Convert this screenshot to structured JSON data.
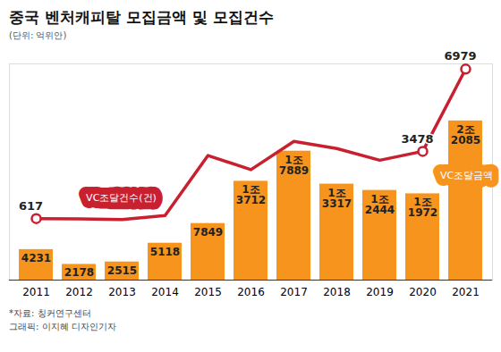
{
  "chart_data": {
    "type": "bar",
    "title": "중국 벤처캐피탈 모집금액 및 모집건수",
    "subtitle": "(단위: 억위안)",
    "categories": [
      "2011",
      "2012",
      "2013",
      "2014",
      "2015",
      "2016",
      "2017",
      "2018",
      "2019",
      "2020",
      "2021"
    ],
    "series": [
      {
        "name": "VC조달금액",
        "type": "bar",
        "color": "#f7941d",
        "values": [
          4231,
          2178,
          2515,
          5118,
          7849,
          13712,
          17889,
          13317,
          12444,
          11972,
          22085
        ],
        "value_labels": [
          "4231",
          "2178",
          "2515",
          "5118",
          "7849",
          "1조 3712",
          "1조 7889",
          "1조 3317",
          "1조 2444",
          "1조 1972",
          "2조 2085"
        ]
      },
      {
        "name": "VC조달건수(건)",
        "type": "line",
        "axis": "y2",
        "color": "#c8202f",
        "marker": "circle",
        "values": [
          617,
          600,
          580,
          750,
          3300,
          2700,
          3900,
          3600,
          3100,
          3478,
          6979
        ],
        "value_labels": [
          "617",
          null,
          null,
          null,
          null,
          null,
          null,
          null,
          null,
          "3478",
          "6979"
        ]
      }
    ],
    "ylim": [
      0,
      30000
    ],
    "yticks": [],
    "y2lim": [
      -2000,
      7200
    ],
    "y2ticks": [],
    "tick_labels": "x",
    "data_labels": true,
    "grid": false,
    "annotations": [
      "*자료: 칭커연구센터",
      "그래픽: 이지혜 디자인기자"
    ]
  }
}
